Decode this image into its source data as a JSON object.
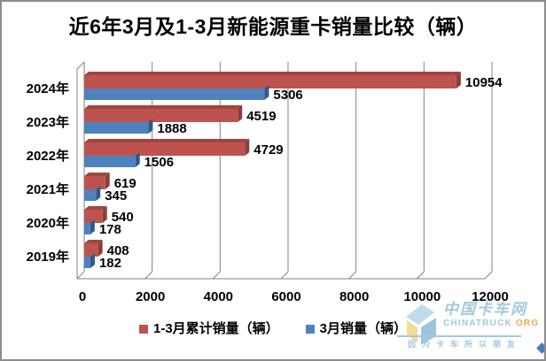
{
  "chart_data": {
    "type": "bar",
    "orientation": "horizontal",
    "style": "3d-clustered",
    "title": "近6年3月及1-3月新能源重卡销量比较（辆）",
    "categories": [
      "2024年",
      "2023年",
      "2022年",
      "2021年",
      "2020年",
      "2019年"
    ],
    "series": [
      {
        "name": "1-3月累计销量（辆）",
        "values": [
          10954,
          4519,
          4729,
          619,
          540,
          408
        ],
        "color": "#BD534E",
        "color_top": "#A04540",
        "color_side": "#8E3D39"
      },
      {
        "name": "3月销量（辆）",
        "values": [
          5306,
          1888,
          1506,
          345,
          178,
          182
        ],
        "color": "#4F81BD",
        "color_top": "#3C6DA3",
        "color_side": "#2E5A88"
      }
    ],
    "xticks": [
      0,
      2000,
      4000,
      6000,
      8000,
      10000,
      12000
    ],
    "xlim": [
      0,
      12000
    ],
    "grid": true,
    "legend_position": "bottom",
    "value_labels": true
  },
  "watermark": {
    "cn": "中国卡车网",
    "en": "CHINATRUCK",
    "tld": "ORG",
    "slogan": "因为卡车所以朋友",
    "color_blue": "#A3C8DC",
    "color_orange": "#F2A73F",
    "logo_light_blue": "#BFDCEA",
    "logo_mid_blue": "#9CC5DB",
    "logo_yellow": "#F3DD95"
  },
  "colors": {
    "grid": "#808080",
    "axis_text": "#000000",
    "frame_border": "#8C8C8C",
    "background": "#FFFFFF",
    "handle": "#4A7CB8"
  }
}
